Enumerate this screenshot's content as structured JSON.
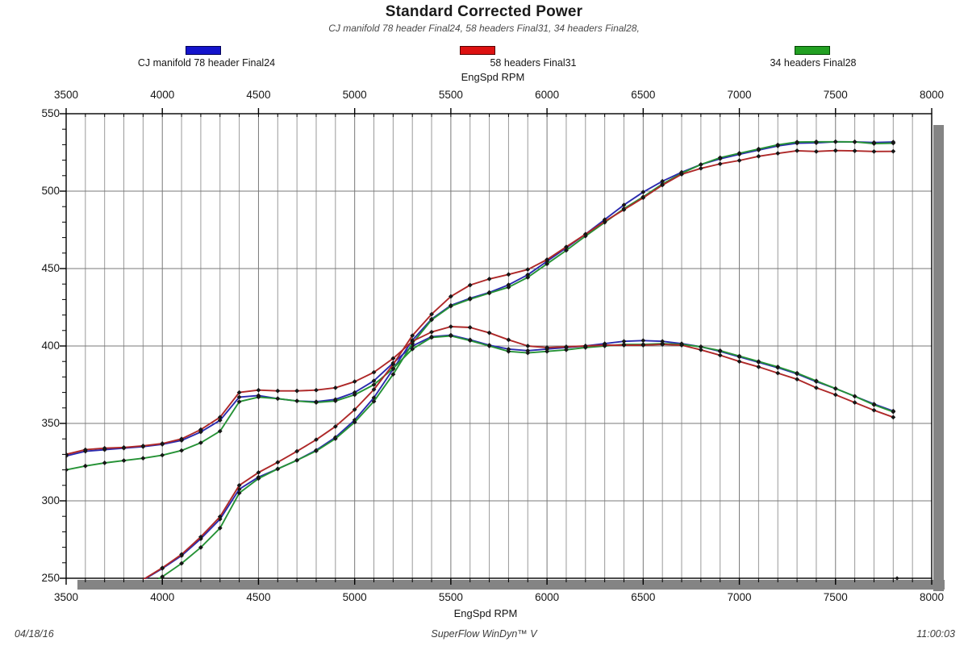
{
  "header": {
    "title": "Standard Corrected Power",
    "subtitle": "CJ manifold 78 header Final24, 58 headers Final31, 34 headers Final28,"
  },
  "legend": {
    "items": [
      {
        "label": "CJ manifold 78 header Final24",
        "swatch_color": "#1414cc",
        "swatch_border": "#000055"
      },
      {
        "label": "58 headers Final31",
        "swatch_color": "#dd1111",
        "swatch_border": "#550000"
      },
      {
        "label": "34 headers Final28",
        "swatch_color": "#22a022",
        "swatch_border": "#004400"
      }
    ]
  },
  "axes": {
    "x_label_top": "EngSpd RPM",
    "x_label_bottom": "EngSpd RPM",
    "x_major_ticks": [
      3500,
      4000,
      4500,
      5000,
      5500,
      6000,
      6500,
      7000,
      7500,
      8000
    ],
    "y_major_ticks": [
      550,
      500,
      450,
      400,
      350,
      300,
      250
    ],
    "x_minor_step": 100,
    "y_minor_step": 10
  },
  "footer": {
    "date": "04/18/16",
    "center": "SuperFlow WinDyn™ V",
    "time": "11:00:03"
  },
  "colors": {
    "grid_minor": "#9a9a9a",
    "grid_major": "#787878",
    "axis": "#000000",
    "shadow": "#848484",
    "marker": "#161616"
  },
  "chart_data": {
    "type": "line",
    "title": "Standard Corrected Power",
    "xlabel": "EngSpd RPM",
    "x_range": [
      3500,
      8000
    ],
    "y_range": [
      250,
      550
    ],
    "grid": "vertical lines every 100 RPM; horizontal lines every 50; values below 250 clipped",
    "legend_position": "top",
    "x": [
      3500,
      3600,
      3700,
      3800,
      3900,
      4000,
      4100,
      4200,
      4300,
      4400,
      4500,
      4600,
      4700,
      4800,
      4900,
      5000,
      5100,
      5200,
      5300,
      5400,
      5500,
      5600,
      5700,
      5800,
      5900,
      6000,
      6100,
      6200,
      6300,
      6400,
      6500,
      6600,
      6700,
      6800,
      6900,
      7000,
      7100,
      7200,
      7300,
      7400,
      7500,
      7600,
      7700,
      7800
    ],
    "series": [
      {
        "name": "CJ manifold 78 header Final24",
        "line_color": "#2a2aae",
        "torque": [
          329,
          332,
          333,
          334,
          335,
          336.5,
          339,
          344.5,
          352,
          367,
          368,
          366,
          364.5,
          364,
          365.5,
          370,
          377.5,
          389,
          400,
          406,
          407,
          404,
          400.5,
          398,
          397,
          398,
          399,
          400,
          401.5,
          403,
          403.5,
          403,
          401.5,
          399.5,
          396.5,
          393,
          389.5,
          386,
          382,
          377,
          372.5,
          367.5,
          362.5,
          358
        ],
        "power": [
          null,
          null,
          null,
          null,
          248.8,
          256.3,
          264.6,
          275.5,
          288.2,
          307.5,
          315.3,
          320.6,
          326.2,
          332.7,
          341.0,
          352.2,
          366.6,
          385.1,
          403.7,
          417.4,
          426.2,
          430.8,
          434.6,
          439.5,
          446.0,
          454.7,
          463.4,
          472.2,
          481.6,
          491.1,
          499.4,
          506.4,
          512.2,
          517.2,
          520.9,
          523.8,
          526.5,
          529.2,
          531.0,
          531.2,
          531.9,
          531.8,
          531.4,
          531.7
        ]
      },
      {
        "name": "58 headers Final31",
        "line_color": "#ae2828",
        "torque": [
          330,
          333,
          334,
          334.5,
          335.5,
          337,
          340,
          346,
          354,
          370,
          371.5,
          371,
          371,
          371.5,
          373,
          377,
          383,
          392,
          403,
          409,
          412.5,
          412,
          408.5,
          404,
          400,
          399,
          399.5,
          400,
          400.5,
          400.5,
          400.5,
          401,
          400.5,
          397.5,
          394,
          390,
          386.5,
          382.5,
          378.5,
          373,
          368.5,
          363.5,
          358.5,
          354
        ],
        "power": [
          null,
          null,
          null,
          null,
          249.1,
          256.7,
          265.4,
          276.7,
          289.8,
          310.0,
          318.3,
          324.9,
          332.0,
          339.5,
          348.0,
          358.9,
          371.9,
          388.1,
          406.7,
          420.5,
          432.0,
          439.3,
          443.3,
          446.2,
          449.4,
          455.8,
          464.0,
          472.2,
          480.4,
          488.0,
          495.7,
          503.9,
          510.9,
          514.7,
          517.6,
          519.8,
          522.5,
          524.4,
          526.1,
          525.6,
          526.2,
          526.0,
          525.6,
          525.7
        ]
      },
      {
        "name": "34 headers Final28",
        "line_color": "#259235",
        "torque": [
          320,
          322.5,
          324.5,
          326,
          327.5,
          329.5,
          332.5,
          337.5,
          345,
          364,
          367,
          366,
          364.5,
          363.5,
          364.5,
          368.5,
          375,
          385.5,
          398,
          405.5,
          406.5,
          403.5,
          400,
          396.5,
          395.5,
          396.5,
          397.5,
          399,
          400,
          401,
          401,
          401.5,
          401,
          399.5,
          397,
          393.5,
          390,
          386.5,
          382.5,
          377.5,
          372.5,
          367.5,
          362,
          357.5
        ],
        "power": [
          null,
          null,
          null,
          null,
          243.2,
          251.0,
          259.6,
          269.9,
          282.4,
          305.0,
          314.4,
          320.6,
          326.2,
          332.2,
          340.1,
          350.8,
          364.2,
          381.7,
          401.6,
          416.9,
          425.7,
          430.2,
          434.1,
          437.9,
          444.3,
          453.0,
          461.7,
          471.0,
          479.8,
          488.7,
          496.3,
          504.6,
          511.5,
          517.2,
          521.6,
          524.5,
          527.2,
          529.9,
          531.7,
          531.9,
          531.9,
          531.8,
          530.7,
          531.0
        ]
      }
    ],
    "stray_point": {
      "rpm": 7820,
      "value": 250
    }
  }
}
